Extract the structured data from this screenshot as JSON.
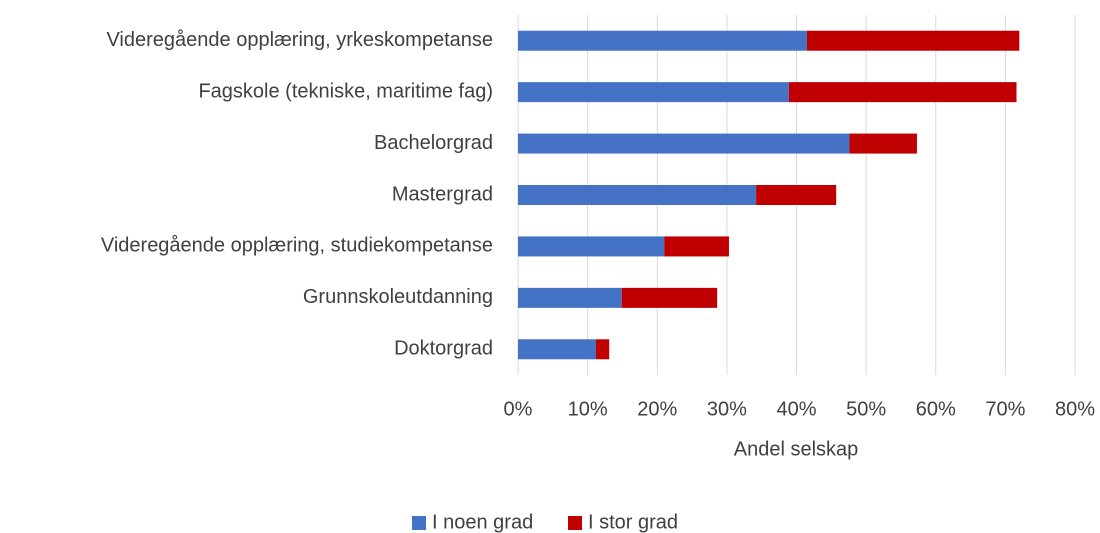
{
  "chart_data": {
    "type": "stacked_barh",
    "categories": [
      "Videregående opplæring, yrkeskompetanse",
      "Fagskole (tekniske, maritime fag)",
      "Bachelorgrad",
      "Mastergrad",
      "Videregående opplæring, studiekompetanse",
      "Grunnskoleutdanning",
      "Doktorgrad"
    ],
    "series": [
      {
        "name": "I noen grad",
        "color": "#4472c4",
        "values": [
          41.5,
          38.9,
          47.6,
          34.2,
          21.0,
          14.9,
          11.2
        ]
      },
      {
        "name": "I stor grad",
        "color": "#c00000",
        "values": [
          30.5,
          32.7,
          9.7,
          11.5,
          9.3,
          13.7,
          1.9
        ]
      }
    ],
    "xlabel": "Andel selskap",
    "xlim": [
      0,
      80
    ],
    "xticks": [
      {
        "value": 0,
        "label": "0%"
      },
      {
        "value": 10,
        "label": "10%"
      },
      {
        "value": 20,
        "label": "20%"
      },
      {
        "value": 30,
        "label": "30%"
      },
      {
        "value": 40,
        "label": "40%"
      },
      {
        "value": 50,
        "label": "50%"
      },
      {
        "value": 60,
        "label": "60%"
      },
      {
        "value": 70,
        "label": "70%"
      },
      {
        "value": 80,
        "label": "80%"
      }
    ],
    "grid": true,
    "legend": "bottom"
  }
}
